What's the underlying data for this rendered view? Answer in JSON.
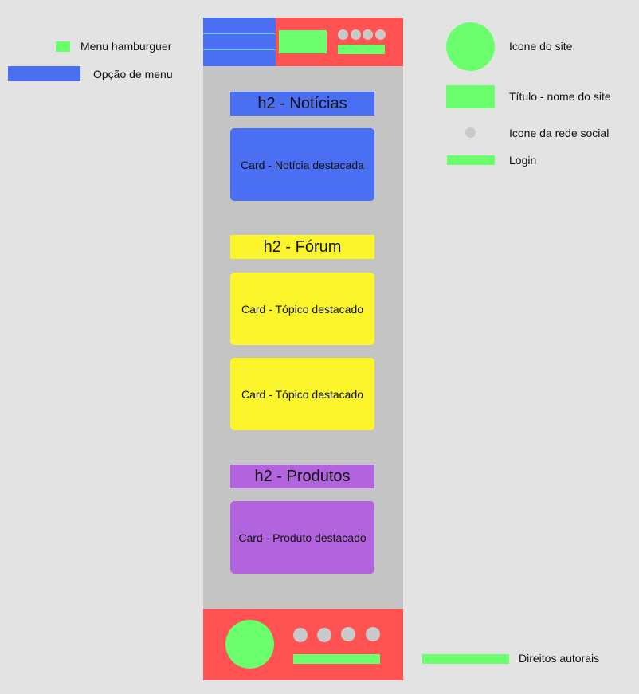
{
  "legend": {
    "hamburger_label": "Menu hamburguer",
    "menu_option_label": "Opção de menu",
    "site_icon_label": "Icone do site",
    "site_title_label": "Título - nome do site",
    "social_icon_label": "Icone da rede social",
    "login_label": "Login",
    "copyright_label": "Direitos autorais"
  },
  "sections": {
    "news": {
      "heading": "h2 - Notícias",
      "card": "Card - Notícia destacada"
    },
    "forum": {
      "heading": "h2 - Fórum",
      "cards": [
        "Card - Tópico destacado",
        "Card - Tópico destacado"
      ]
    },
    "products": {
      "heading": "h2 - Produtos",
      "card": "Card - Produto destacado"
    }
  },
  "colors": {
    "background": "#e3e3e3",
    "page": "#c4c4c4",
    "header_footer": "#ff5353",
    "menu": "#4a6ff3",
    "green": "#6bff6e",
    "social": "#c9c9c9",
    "forum": "#fcf52c",
    "products": "#b164de"
  }
}
